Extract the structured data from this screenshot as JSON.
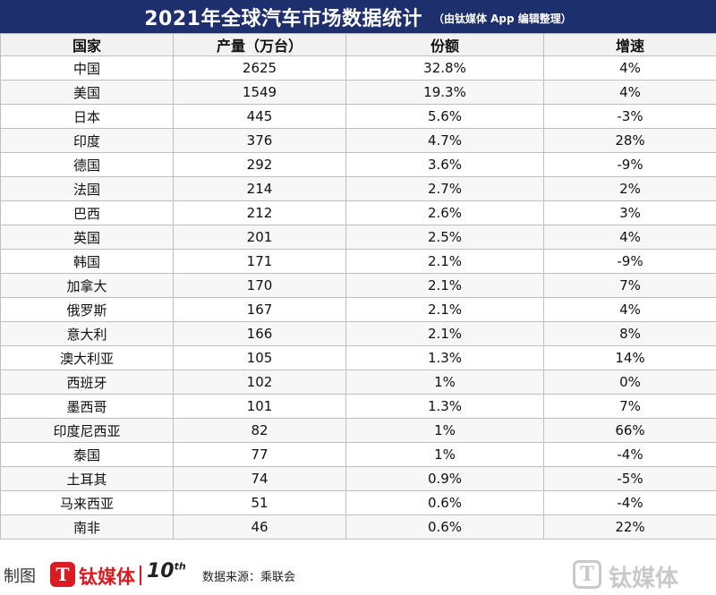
{
  "title": "2021年全球汽车市场数据统计",
  "subtitle": "（由钛媒体 App 编辑整理）",
  "chart_data": {
    "type": "table",
    "columns": [
      "国家",
      "产量（万台）",
      "份额",
      "增速"
    ],
    "rows": [
      [
        "中国",
        "2625",
        "32.8%",
        "4%"
      ],
      [
        "美国",
        "1549",
        "19.3%",
        "4%"
      ],
      [
        "日本",
        "445",
        "5.6%",
        "-3%"
      ],
      [
        "印度",
        "376",
        "4.7%",
        "28%"
      ],
      [
        "德国",
        "292",
        "3.6%",
        "-9%"
      ],
      [
        "法国",
        "214",
        "2.7%",
        "2%"
      ],
      [
        "巴西",
        "212",
        "2.6%",
        "3%"
      ],
      [
        "英国",
        "201",
        "2.5%",
        "4%"
      ],
      [
        "韩国",
        "171",
        "2.1%",
        "-9%"
      ],
      [
        "加拿大",
        "170",
        "2.1%",
        "7%"
      ],
      [
        "俄罗斯",
        "167",
        "2.1%",
        "4%"
      ],
      [
        "意大利",
        "166",
        "2.1%",
        "8%"
      ],
      [
        "澳大利亚",
        "105",
        "1.3%",
        "14%"
      ],
      [
        "西班牙",
        "102",
        "1%",
        "0%"
      ],
      [
        "墨西哥",
        "101",
        "1.3%",
        "7%"
      ],
      [
        "印度尼西亚",
        "82",
        "1%",
        "66%"
      ],
      [
        "泰国",
        "77",
        "1%",
        "-4%"
      ],
      [
        "土耳其",
        "74",
        "0.9%",
        "-5%"
      ],
      [
        "马来西亚",
        "51",
        "0.6%",
        "-4%"
      ],
      [
        "南非",
        "46",
        "0.6%",
        "22%"
      ]
    ]
  },
  "footer": {
    "made_label": "制图",
    "brand_glyph": "T",
    "brand_name": "钛媒体",
    "anniversary": "10",
    "anniversary_sup": "th",
    "source": "数据来源：乘联会",
    "watermark_glyph": "T",
    "watermark_name": "钛媒体"
  },
  "colors": {
    "title_bg": "#1e2f6e",
    "brand_red": "#d91c21",
    "watermark_gray": "#c9c9c9"
  }
}
